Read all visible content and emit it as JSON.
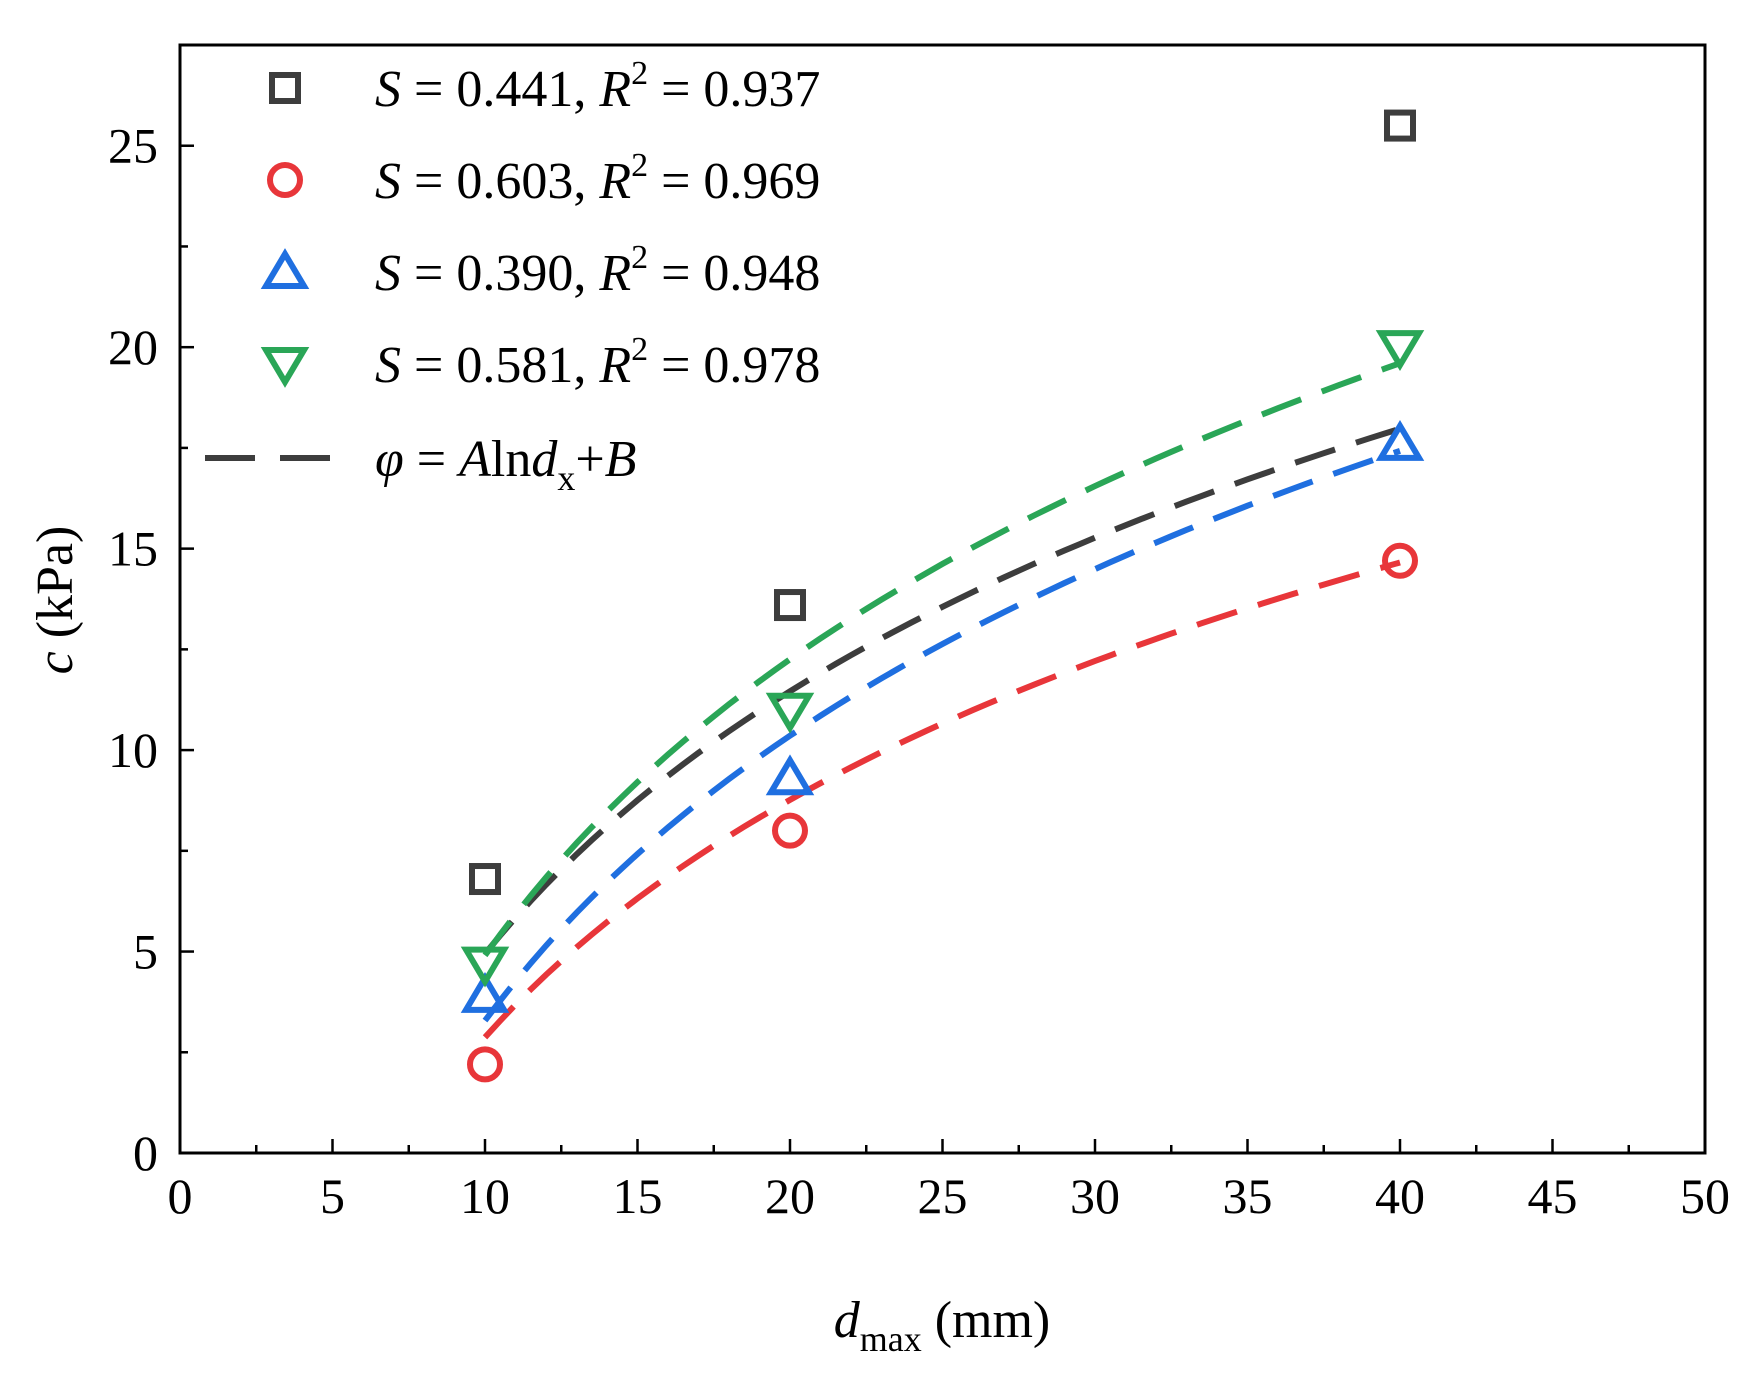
{
  "chart_data": {
    "type": "scatter",
    "title": "",
    "xlabel": {
      "var": "d",
      "sub": "max",
      "unit": " (mm)"
    },
    "ylabel": {
      "var": "c",
      "unit": " (kPa)"
    },
    "xlim": [
      0,
      50
    ],
    "ylim": [
      0,
      27.5
    ],
    "xticks": [
      0,
      5,
      10,
      15,
      20,
      25,
      30,
      35,
      40,
      45,
      50
    ],
    "yticks": [
      0,
      5,
      10,
      15,
      20,
      25
    ],
    "legend_position": "top-left",
    "series": [
      {
        "name": "S = 0.441, R2 = 0.937",
        "S": "0.441",
        "R2": "0.937",
        "marker": "square",
        "color": "#3d3d3d",
        "x": [
          10,
          20,
          40
        ],
        "y": [
          6.8,
          13.6,
          25.5
        ],
        "fit": {
          "A": 9.4,
          "B": -16.7
        }
      },
      {
        "name": "S = 0.603, R2 = 0.969",
        "S": "0.603",
        "R2": "0.969",
        "marker": "circle",
        "color": "#e8363a",
        "x": [
          10,
          20,
          40
        ],
        "y": [
          2.2,
          8.0,
          14.7
        ],
        "fit": {
          "A": 8.5,
          "B": -16.7
        }
      },
      {
        "name": "S = 0.390, R2 = 0.948",
        "S": "0.390",
        "R2": "0.948",
        "marker": "triangle-up",
        "color": "#1f6fe0",
        "x": [
          10,
          20,
          40
        ],
        "y": [
          3.9,
          9.3,
          17.6
        ],
        "fit": {
          "A": 10.2,
          "B": -20.2
        }
      },
      {
        "name": "S = 0.581, R2 = 0.978",
        "S": "0.581",
        "R2": "0.978",
        "marker": "triangle-down",
        "color": "#2aa657",
        "x": [
          10,
          20,
          40
        ],
        "y": [
          4.7,
          11.0,
          20.0
        ],
        "fit": {
          "A": 10.6,
          "B": -19.5
        }
      }
    ],
    "fit_legend": {
      "lhs": "φ",
      "eq": " = ",
      "A": "A",
      "ln": "ln",
      "d": "d",
      "sub": "x",
      "plus": "+",
      "B": "B",
      "color": "#3d3d3d"
    },
    "fit_range": [
      10,
      40
    ]
  }
}
